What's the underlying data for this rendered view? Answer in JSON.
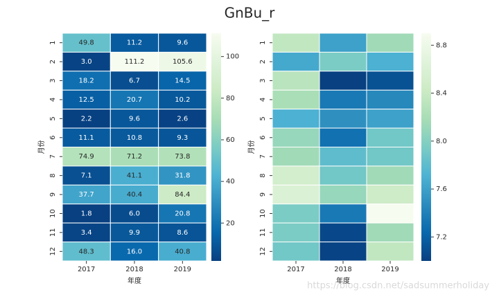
{
  "title": "GnBu_r",
  "watermark": "https://blog.csdn.net/sadsummerholiday",
  "chart_data": [
    {
      "type": "heatmap",
      "xlabel": "年度",
      "ylabel": "月份",
      "x": [
        "2017",
        "2018",
        "2019"
      ],
      "y": [
        "1",
        "2",
        "3",
        "4",
        "5",
        "6",
        "7",
        "8",
        "9",
        "10",
        "11",
        "12"
      ],
      "values": [
        [
          49.8,
          11.2,
          9.6
        ],
        [
          3,
          111.2,
          105.6
        ],
        [
          18.2,
          6.7,
          14.5
        ],
        [
          12.5,
          20.7,
          10.2
        ],
        [
          2.2,
          9.6,
          2.6
        ],
        [
          11.1,
          10.8,
          9.3
        ],
        [
          74.9,
          71.2,
          73.8
        ],
        [
          7.1,
          41.1,
          31.8
        ],
        [
          37.7,
          40.4,
          84.4
        ],
        [
          1.8,
          6,
          20.8
        ],
        [
          3.4,
          9.9,
          8.6
        ],
        [
          48.3,
          16,
          40.8
        ]
      ],
      "value_labels": [
        [
          "49.8",
          "11.2",
          "9.6"
        ],
        [
          "3.0",
          "111.2",
          "105.6"
        ],
        [
          "18.2",
          "6.7",
          "14.5"
        ],
        [
          "12.5",
          "20.7",
          "10.2"
        ],
        [
          "2.2",
          "9.6",
          "2.6"
        ],
        [
          "11.1",
          "10.8",
          "9.3"
        ],
        [
          "74.9",
          "71.2",
          "73.8"
        ],
        [
          "7.1",
          "41.1",
          "31.8"
        ],
        [
          "37.7",
          "40.4",
          "84.4"
        ],
        [
          "1.8",
          "6.0",
          "20.8"
        ],
        [
          "3.4",
          "9.9",
          "8.6"
        ],
        [
          "48.3",
          "16.0",
          "40.8"
        ]
      ],
      "clim": [
        1.8,
        111.2
      ],
      "cticks": [
        20,
        40,
        60,
        80,
        100
      ],
      "colormap": [
        "#084081",
        "#0868ac",
        "#2b8cbe",
        "#4eb3d3",
        "#7bccc4",
        "#a8ddb5",
        "#ccebc5",
        "#e0f3db",
        "#f7fcf0"
      ]
    },
    {
      "type": "heatmap",
      "xlabel": "年度",
      "ylabel": "月份",
      "x": [
        "2017",
        "2018",
        "2019"
      ],
      "y": [
        "1",
        "2",
        "3",
        "4",
        "5",
        "6",
        "7",
        "8",
        "9",
        "10",
        "11",
        "12"
      ],
      "values": [
        [
          8.35,
          7.6,
          8.15
        ],
        [
          7.65,
          7.95,
          7.7
        ],
        [
          8.3,
          7.0,
          7.1
        ],
        [
          8.2,
          7.35,
          7.45
        ],
        [
          7.7,
          7.5,
          7.6
        ],
        [
          8.1,
          7.3,
          7.9
        ],
        [
          8.15,
          7.8,
          7.9
        ],
        [
          8.5,
          7.9,
          8.15
        ],
        [
          8.6,
          8.1,
          8.45
        ],
        [
          7.95,
          7.35,
          8.9
        ],
        [
          7.95,
          7.05,
          8.15
        ],
        [
          7.9,
          7.02,
          8.35
        ]
      ],
      "clim": [
        7.0,
        8.9
      ],
      "cticks": [
        7.2,
        7.6,
        {
          "value": 8,
          "label": "8.0"
        },
        8.4,
        8.8
      ],
      "colormap": [
        "#084081",
        "#0868ac",
        "#2b8cbe",
        "#4eb3d3",
        "#7bccc4",
        "#a8ddb5",
        "#ccebc5",
        "#e0f3db",
        "#f7fcf0"
      ]
    }
  ]
}
